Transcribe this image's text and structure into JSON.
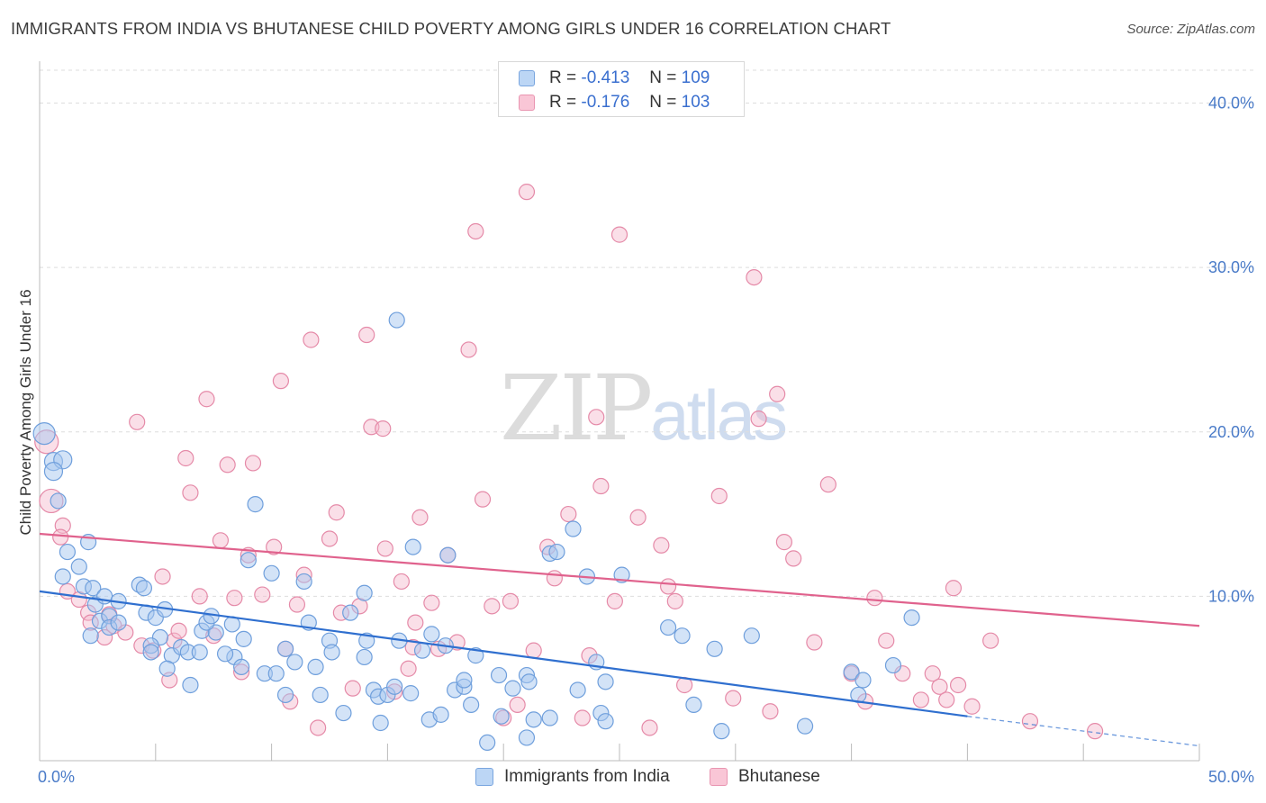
{
  "title": "IMMIGRANTS FROM INDIA VS BHUTANESE CHILD POVERTY AMONG GIRLS UNDER 16 CORRELATION CHART",
  "source": "Source: ZipAtlas.com",
  "watermark": {
    "zip": "ZIP",
    "atlas": "atlas"
  },
  "legend": {
    "india": {
      "r_label": "R = ",
      "r_value": "-0.413",
      "n_label": "N = ",
      "n_value": "109"
    },
    "bhutan": {
      "r_label": "R = ",
      "r_value": "-0.176",
      "n_label": "N = ",
      "n_value": "103"
    }
  },
  "colors": {
    "india_fill": "#a8c8f0",
    "india_stroke": "#6f9fdc",
    "india_line": "#2f6fcf",
    "bhutan_fill": "#f5b8cb",
    "bhutan_stroke": "#e58aa8",
    "bhutan_line": "#e0628d",
    "grid": "#dddddd",
    "axis_label": "#4a7bc8"
  },
  "chart_data": {
    "type": "scatter",
    "title": "IMMIGRANTS FROM INDIA VS BHUTANESE CHILD POVERTY AMONG GIRLS UNDER 16 CORRELATION CHART",
    "xlabel": "",
    "ylabel": "Child Poverty Among Girls Under 16",
    "xlim": [
      0,
      50
    ],
    "ylim": [
      0,
      42
    ],
    "x_tick_labels": [
      "0.0%",
      "50.0%"
    ],
    "y_ticks": [
      10,
      20,
      30,
      40
    ],
    "y_tick_labels": [
      "10.0%",
      "20.0%",
      "30.0%",
      "40.0%"
    ],
    "grid": true,
    "legend_position": "top-center",
    "series": [
      {
        "name": "Immigrants from India",
        "stats": {
          "R": -0.413,
          "N": 109
        },
        "trend": {
          "x0": 0,
          "y0": 10.3,
          "x1": 40,
          "y1": 2.7,
          "dashed_to_x": 50,
          "dashed_to_y": 0.9
        },
        "points": [
          [
            0.2,
            19.9
          ],
          [
            0.6,
            18.2
          ],
          [
            1.0,
            18.3
          ],
          [
            0.6,
            17.6
          ],
          [
            0.8,
            15.8
          ],
          [
            1.2,
            12.7
          ],
          [
            1.0,
            11.2
          ],
          [
            1.7,
            11.8
          ],
          [
            2.1,
            13.3
          ],
          [
            1.9,
            10.6
          ],
          [
            2.3,
            10.5
          ],
          [
            2.4,
            9.5
          ],
          [
            2.8,
            10.0
          ],
          [
            2.6,
            8.5
          ],
          [
            3.0,
            8.8
          ],
          [
            3.0,
            8.1
          ],
          [
            2.2,
            7.6
          ],
          [
            3.4,
            9.7
          ],
          [
            3.4,
            8.4
          ],
          [
            4.3,
            10.7
          ],
          [
            4.5,
            10.5
          ],
          [
            4.6,
            9.0
          ],
          [
            5.0,
            8.7
          ],
          [
            5.4,
            9.2
          ],
          [
            5.2,
            7.5
          ],
          [
            4.8,
            7.0
          ],
          [
            4.8,
            6.6
          ],
          [
            5.7,
            6.4
          ],
          [
            6.1,
            6.9
          ],
          [
            6.4,
            6.6
          ],
          [
            6.9,
            6.6
          ],
          [
            7.0,
            7.9
          ],
          [
            7.6,
            7.8
          ],
          [
            7.2,
            8.4
          ],
          [
            7.4,
            8.8
          ],
          [
            8.3,
            8.3
          ],
          [
            8.8,
            7.4
          ],
          [
            8.4,
            6.3
          ],
          [
            8.0,
            6.5
          ],
          [
            8.7,
            5.7
          ],
          [
            6.5,
            4.6
          ],
          [
            5.5,
            5.6
          ],
          [
            9.3,
            15.6
          ],
          [
            9.0,
            12.2
          ],
          [
            10.0,
            11.4
          ],
          [
            9.7,
            5.3
          ],
          [
            10.2,
            5.3
          ],
          [
            10.6,
            6.8
          ],
          [
            11.0,
            6.0
          ],
          [
            10.6,
            4.0
          ],
          [
            11.4,
            10.9
          ],
          [
            11.6,
            8.4
          ],
          [
            11.9,
            5.7
          ],
          [
            12.1,
            4.0
          ],
          [
            12.5,
            7.3
          ],
          [
            12.6,
            6.6
          ],
          [
            13.4,
            9.0
          ],
          [
            13.1,
            2.9
          ],
          [
            14.0,
            10.2
          ],
          [
            14.1,
            7.3
          ],
          [
            14.0,
            6.3
          ],
          [
            14.4,
            4.3
          ],
          [
            14.6,
            3.9
          ],
          [
            15.0,
            4.0
          ],
          [
            15.3,
            4.5
          ],
          [
            15.5,
            7.3
          ],
          [
            14.7,
            2.3
          ],
          [
            16.1,
            13.0
          ],
          [
            16.5,
            6.7
          ],
          [
            16.8,
            2.5
          ],
          [
            16.9,
            7.7
          ],
          [
            17.6,
            12.5
          ],
          [
            17.3,
            2.8
          ],
          [
            17.9,
            4.3
          ],
          [
            18.3,
            4.5
          ],
          [
            18.6,
            3.4
          ],
          [
            18.3,
            4.9
          ],
          [
            18.8,
            6.4
          ],
          [
            17.5,
            7.0
          ],
          [
            16.0,
            4.1
          ],
          [
            19.3,
            1.1
          ],
          [
            19.9,
            2.7
          ],
          [
            19.8,
            5.2
          ],
          [
            20.4,
            4.4
          ],
          [
            21.0,
            5.2
          ],
          [
            21.3,
            2.5
          ],
          [
            15.4,
            26.8
          ],
          [
            21.0,
            1.4
          ],
          [
            21.1,
            4.8
          ],
          [
            22.0,
            2.6
          ],
          [
            22.0,
            12.6
          ],
          [
            22.3,
            12.7
          ],
          [
            23.0,
            14.1
          ],
          [
            23.2,
            4.3
          ],
          [
            23.6,
            11.2
          ],
          [
            24.0,
            6.0
          ],
          [
            24.4,
            4.8
          ],
          [
            24.2,
            2.9
          ],
          [
            24.4,
            2.4
          ],
          [
            25.1,
            11.3
          ],
          [
            27.1,
            8.1
          ],
          [
            27.7,
            7.6
          ],
          [
            28.2,
            3.4
          ],
          [
            29.1,
            6.8
          ],
          [
            29.4,
            1.8
          ],
          [
            30.7,
            7.6
          ],
          [
            33.0,
            2.1
          ],
          [
            35.0,
            5.4
          ],
          [
            35.3,
            4.0
          ],
          [
            35.5,
            4.9
          ],
          [
            36.8,
            5.8
          ],
          [
            37.6,
            8.7
          ]
        ]
      },
      {
        "name": "Bhutanese",
        "stats": {
          "R": -0.176,
          "N": 103
        },
        "trend": {
          "x0": 0,
          "y0": 13.8,
          "x1": 50,
          "y1": 8.2
        },
        "points": [
          [
            0.3,
            19.4
          ],
          [
            0.5,
            15.8
          ],
          [
            1.0,
            14.3
          ],
          [
            0.9,
            13.6
          ],
          [
            1.2,
            10.3
          ],
          [
            1.7,
            9.8
          ],
          [
            2.1,
            9.0
          ],
          [
            2.2,
            8.4
          ],
          [
            2.8,
            7.5
          ],
          [
            3.0,
            8.9
          ],
          [
            3.2,
            8.2
          ],
          [
            3.7,
            7.8
          ],
          [
            4.2,
            20.6
          ],
          [
            4.4,
            7.0
          ],
          [
            4.9,
            6.7
          ],
          [
            5.3,
            11.2
          ],
          [
            5.6,
            4.9
          ],
          [
            5.8,
            7.3
          ],
          [
            6.0,
            7.9
          ],
          [
            6.3,
            18.4
          ],
          [
            6.5,
            16.3
          ],
          [
            6.9,
            10.0
          ],
          [
            7.2,
            22.0
          ],
          [
            7.5,
            7.6
          ],
          [
            7.8,
            13.4
          ],
          [
            8.1,
            18.0
          ],
          [
            8.4,
            9.9
          ],
          [
            8.7,
            5.4
          ],
          [
            9.0,
            12.5
          ],
          [
            9.2,
            18.1
          ],
          [
            9.6,
            10.1
          ],
          [
            10.1,
            13.0
          ],
          [
            10.4,
            23.1
          ],
          [
            10.6,
            6.8
          ],
          [
            10.8,
            3.6
          ],
          [
            11.1,
            9.5
          ],
          [
            11.4,
            11.3
          ],
          [
            11.7,
            25.6
          ],
          [
            12.0,
            2.0
          ],
          [
            12.5,
            13.5
          ],
          [
            12.8,
            15.1
          ],
          [
            13.0,
            9.0
          ],
          [
            13.5,
            4.4
          ],
          [
            13.8,
            9.4
          ],
          [
            14.1,
            25.9
          ],
          [
            14.3,
            20.3
          ],
          [
            14.8,
            20.2
          ],
          [
            14.9,
            12.9
          ],
          [
            15.3,
            4.2
          ],
          [
            15.6,
            10.9
          ],
          [
            15.9,
            5.6
          ],
          [
            16.2,
            8.4
          ],
          [
            16.4,
            14.8
          ],
          [
            16.9,
            9.6
          ],
          [
            17.2,
            6.8
          ],
          [
            17.6,
            12.5
          ],
          [
            18.0,
            7.2
          ],
          [
            18.5,
            25.0
          ],
          [
            18.8,
            32.2
          ],
          [
            19.1,
            15.9
          ],
          [
            19.5,
            9.4
          ],
          [
            20.0,
            2.6
          ],
          [
            20.3,
            9.7
          ],
          [
            20.6,
            3.4
          ],
          [
            21.0,
            34.6
          ],
          [
            21.3,
            6.7
          ],
          [
            21.9,
            13.0
          ],
          [
            22.2,
            11.1
          ],
          [
            22.8,
            15.0
          ],
          [
            23.4,
            2.6
          ],
          [
            23.7,
            6.4
          ],
          [
            24.0,
            20.9
          ],
          [
            24.2,
            16.7
          ],
          [
            24.8,
            9.7
          ],
          [
            25.0,
            32.0
          ],
          [
            25.8,
            14.8
          ],
          [
            26.3,
            2.0
          ],
          [
            26.8,
            13.1
          ],
          [
            27.1,
            10.6
          ],
          [
            27.4,
            9.7
          ],
          [
            27.8,
            4.6
          ],
          [
            29.3,
            16.1
          ],
          [
            29.9,
            3.8
          ],
          [
            30.8,
            29.4
          ],
          [
            31.0,
            20.8
          ],
          [
            31.5,
            3.0
          ],
          [
            31.8,
            22.3
          ],
          [
            32.1,
            13.3
          ],
          [
            32.5,
            12.3
          ],
          [
            33.4,
            7.2
          ],
          [
            34.0,
            16.8
          ],
          [
            35.0,
            5.3
          ],
          [
            35.6,
            3.6
          ],
          [
            36.0,
            9.9
          ],
          [
            36.5,
            7.3
          ],
          [
            37.2,
            5.3
          ],
          [
            38.0,
            3.7
          ],
          [
            38.5,
            5.3
          ],
          [
            38.8,
            4.5
          ],
          [
            39.1,
            3.7
          ],
          [
            39.6,
            4.6
          ],
          [
            40.2,
            3.3
          ],
          [
            41.0,
            7.3
          ],
          [
            42.7,
            2.4
          ],
          [
            45.5,
            1.8
          ],
          [
            39.4,
            10.5
          ],
          [
            16.1,
            6.9
          ]
        ]
      }
    ]
  },
  "bottom_legend": [
    {
      "label": "Immigrants from India"
    },
    {
      "label": "Bhutanese"
    }
  ]
}
